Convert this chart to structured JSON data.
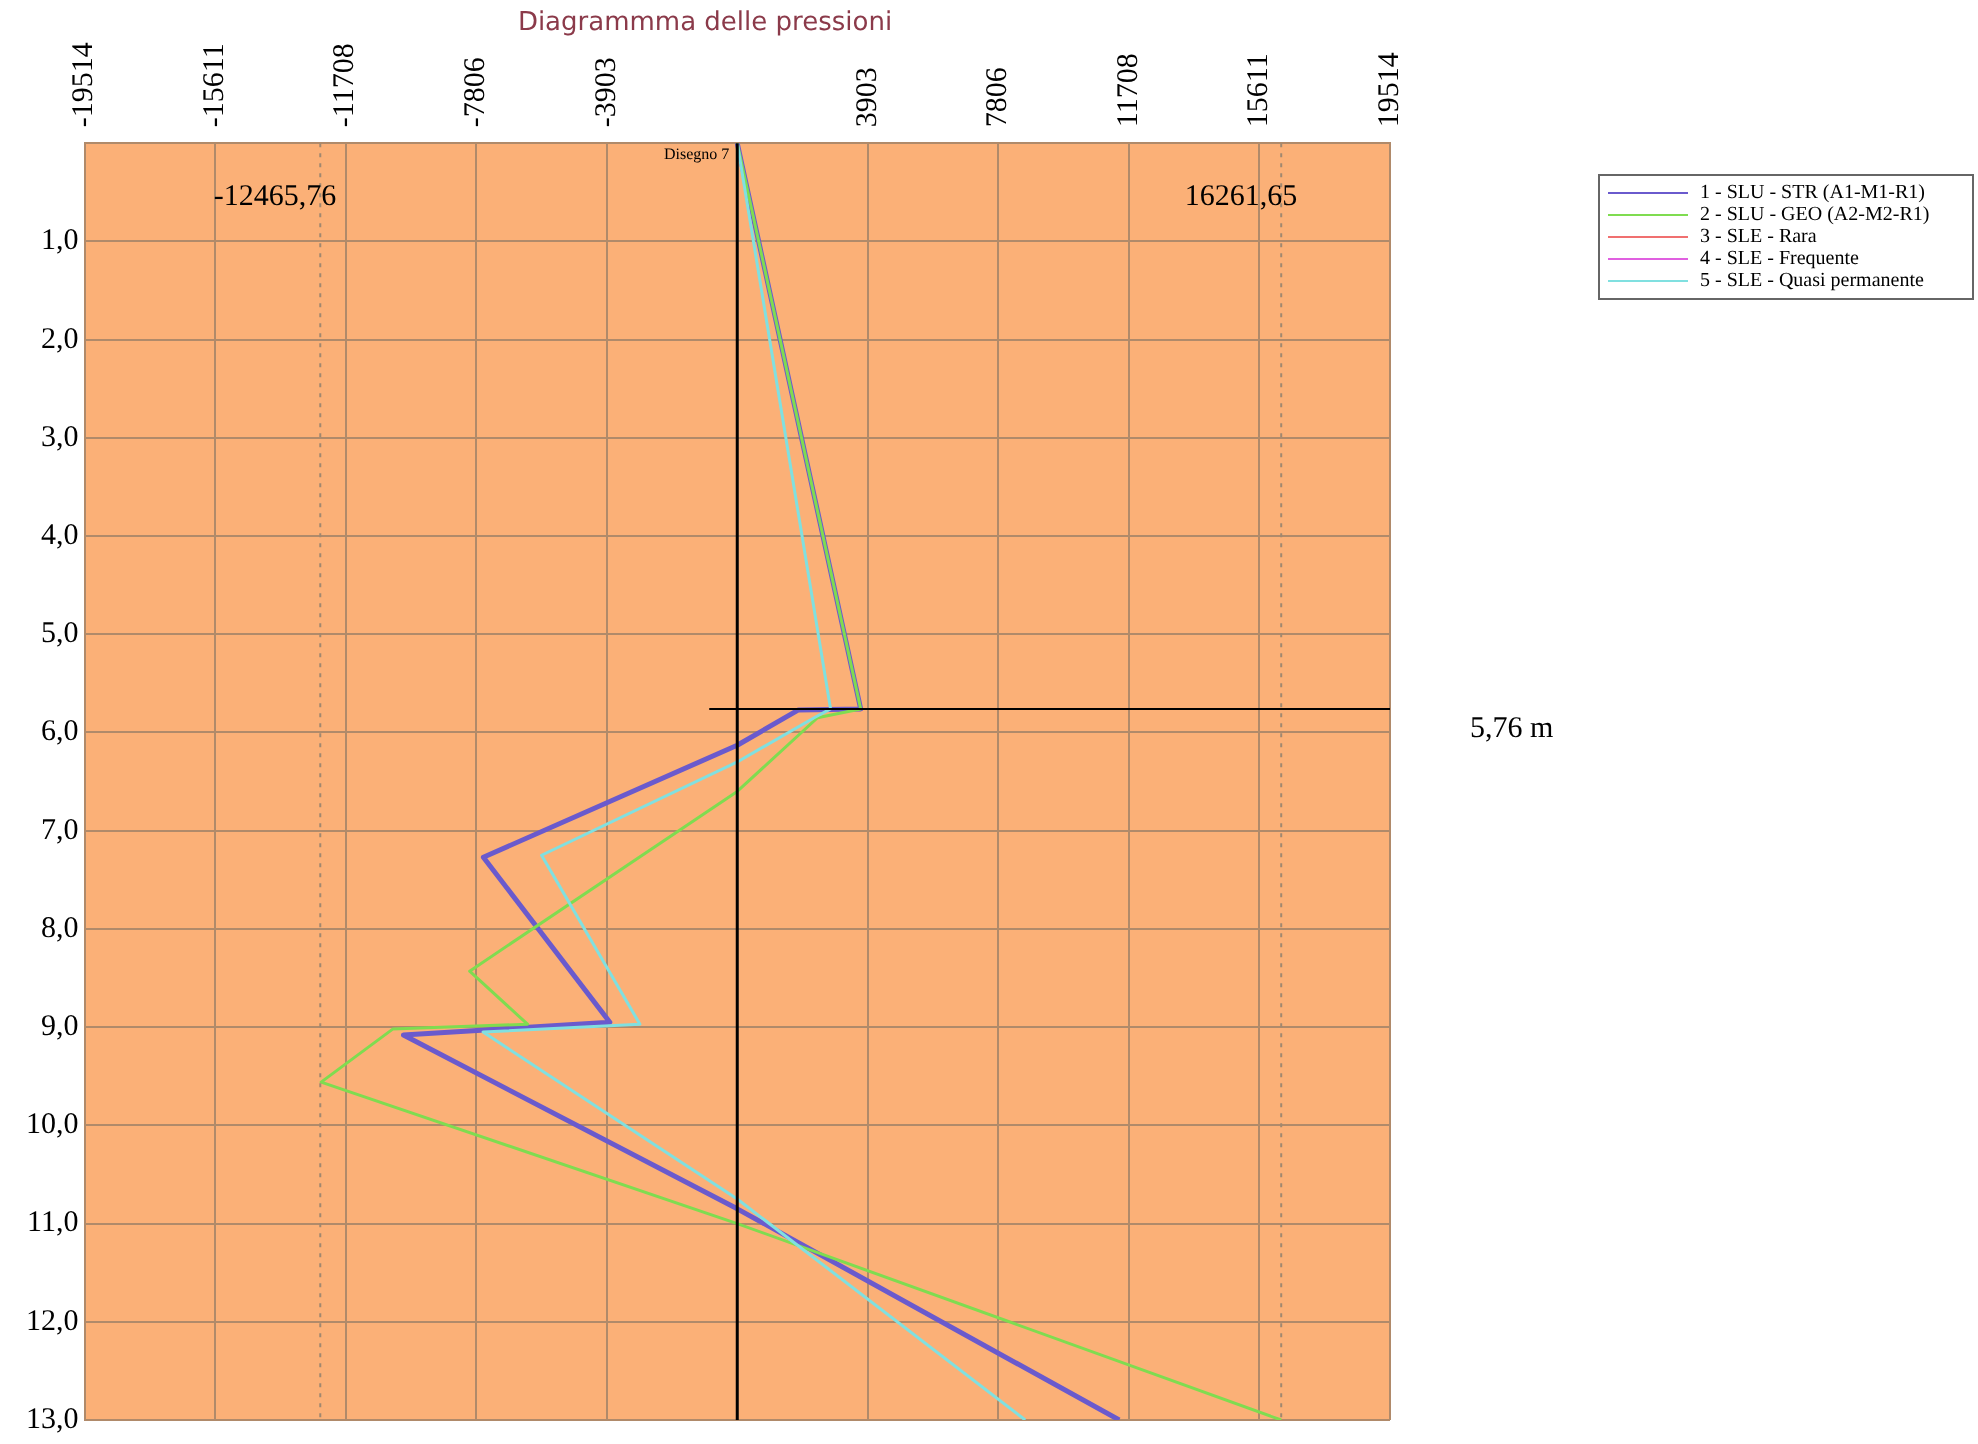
{
  "chart_data": {
    "type": "line",
    "title": "Diagrammma delle pressioni",
    "xlim": [
      -19514,
      19514
    ],
    "xticks": [
      -19514,
      -15611,
      -11708,
      -7806,
      -3903,
      {
        "value": 0,
        "label": null
      },
      3903,
      7806,
      11708,
      15611,
      19514
    ],
    "ylim": [
      13,
      0
    ],
    "yticks": [
      {
        "value": 1,
        "label": "1,0"
      },
      {
        "value": 2,
        "label": "2,0"
      },
      {
        "value": 3,
        "label": "3,0"
      },
      {
        "value": 4,
        "label": "4,0"
      },
      {
        "value": 5,
        "label": "5,0"
      },
      {
        "value": 6,
        "label": "6,0"
      },
      {
        "value": 7,
        "label": "7,0"
      },
      {
        "value": 8,
        "label": "8,0"
      },
      {
        "value": 9,
        "label": "9,0"
      },
      {
        "value": 10,
        "label": "10,0"
      },
      {
        "value": 11,
        "label": "11,0"
      },
      {
        "value": 12,
        "label": "12,0"
      },
      {
        "value": 13,
        "label": "13,0"
      }
    ],
    "grid": true,
    "legend": "top right",
    "marker": "none",
    "line_style": "solid",
    "series": [
      {
        "name": "1 - SLU - STR (A1-M1-R1)",
        "color": "#6a5acd",
        "x": [
          0,
          3690,
          1830,
          0,
          -7590,
          -3810,
          -9980,
          0,
          11420
        ],
        "values": [
          0,
          5.76,
          5.77,
          6.13,
          7.27,
          8.95,
          9.08,
          10.85,
          13.0
        ]
      },
      {
        "name": "2 - SLU - GEO (A2-M2-R1)",
        "color": "#7fdc50",
        "x": [
          0,
          3690,
          2400,
          0,
          -8000,
          -6270,
          -10300,
          -12440,
          0,
          16260
        ],
        "values": [
          0,
          5.76,
          5.85,
          6.6,
          8.43,
          8.97,
          9.02,
          9.56,
          11.0,
          13.0
        ]
      },
      {
        "name": "3 - SLE - Rara",
        "color": "#f07070"
      },
      {
        "name": "4 - SLE - Frequente",
        "color": "#e060e0"
      },
      {
        "name": "5 - SLE - Quasi permanente",
        "color": "#80e0e0",
        "x": [
          0,
          2790,
          2300,
          0,
          -5850,
          -2910,
          -7600,
          0,
          8610
        ],
        "values": [
          0,
          5.76,
          5.85,
          6.3,
          7.25,
          8.97,
          9.05,
          10.75,
          13.0
        ]
      }
    ],
    "ref_lines": [
      {
        "axis": "x",
        "value": -12465.76,
        "label": "-12465,76",
        "color": "#a08870",
        "line_style": "dotted"
      },
      {
        "axis": "x",
        "value": 16261.65,
        "label": "16261,65",
        "color": "#a08870",
        "line_style": "dotted"
      },
      {
        "axis": "y",
        "value": 5.76,
        "label": "5,76 m",
        "color": "#000000",
        "line_style": "solid"
      }
    ],
    "annotations": [
      "Disegno 7"
    ]
  }
}
